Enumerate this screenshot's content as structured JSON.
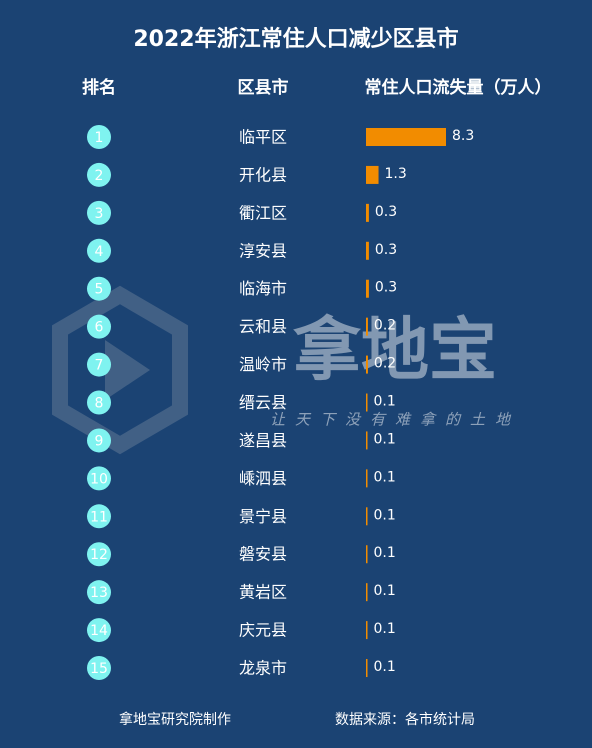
{
  "chart_data": {
    "type": "bar",
    "title": "2022年浙江常住人口减少区县市",
    "headers": [
      "排名",
      "区县市",
      "常住人口流失量（万人）"
    ],
    "ranks": [
      1,
      2,
      3,
      4,
      5,
      6,
      7,
      8,
      9,
      10,
      11,
      12,
      13,
      14,
      15
    ],
    "categories": [
      "临平区",
      "开化县",
      "衢江区",
      "淳安县",
      "临海市",
      "云和县",
      "温岭市",
      "缙云县",
      "遂昌县",
      "嵊泗县",
      "景宁县",
      "磐安县",
      "黄岩区",
      "庆元县",
      "龙泉市"
    ],
    "values": [
      8.3,
      1.3,
      0.3,
      0.3,
      0.3,
      0.2,
      0.2,
      0.1,
      0.1,
      0.1,
      0.1,
      0.1,
      0.1,
      0.1,
      0.1
    ],
    "color": "#f28c00",
    "watermark": "拿地宝",
    "slogan": "让天下没有难拿的土地",
    "footer": [
      "拿地宝研究院制作",
      "数据来源：各市统计局"
    ]
  }
}
